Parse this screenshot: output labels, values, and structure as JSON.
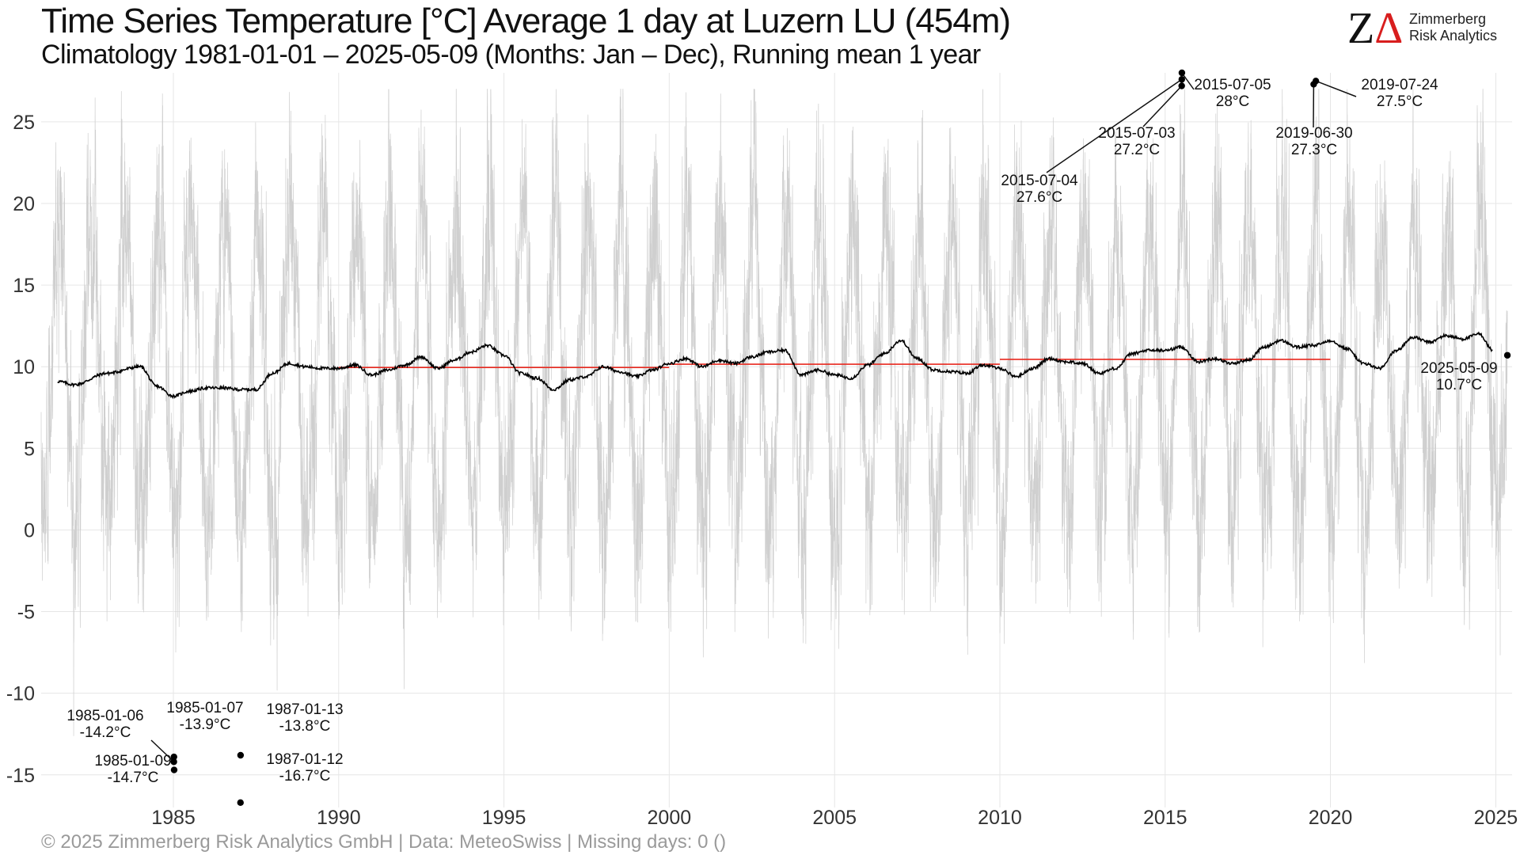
{
  "header": {
    "title": "Time Series Temperature [°C] Average 1 day at Luzern  LU (454m)",
    "subtitle": "Climatology 1981-01-01 – 2025-05-09 (Months: Jan – Dec), Running mean 1 year"
  },
  "logo": {
    "mark": "ZΔ",
    "line1": "Zimmerberg",
    "line2": "Risk Analytics"
  },
  "caption": "©  2025 Zimmerberg Risk Analytics GmbH | Data: MeteoSwiss | Missing days: 0 ()",
  "colors": {
    "daily_series": "#cfcfcf",
    "running_mean": "#000000",
    "decadal_mean": "#e8281e",
    "grid": "#e6e6e6",
    "logo_accent": "#d81e1e"
  },
  "chart_data": {
    "type": "line",
    "x_axis": {
      "type": "date",
      "range": [
        "1981-01-01",
        "2025-06-30"
      ],
      "ticks": [
        "1985",
        "1990",
        "1995",
        "2000",
        "2005",
        "2010",
        "2015",
        "2020",
        "2025"
      ]
    },
    "y_axis": {
      "range": [
        -17,
        28
      ],
      "ticks": [
        -15,
        -10,
        -5,
        0,
        5,
        10,
        15,
        20,
        25
      ]
    },
    "grid": true,
    "legend": "none",
    "series": [
      {
        "role": "daily",
        "seasonal_cycle": {
          "annual_mean": 9.8,
          "amplitude": 9.2,
          "warmest_day_of_year": 200,
          "noise_sd": 3.2
        }
      },
      {
        "role": "running_mean_1y",
        "x": [
          "1981-07",
          "1982-01",
          "1983-01",
          "1984-01",
          "1984-07",
          "1985-01",
          "1985-07",
          "1986-01",
          "1986-07",
          "1987-01",
          "1987-07",
          "1988-01",
          "1988-07",
          "1989-01",
          "1989-07",
          "1990-01",
          "1990-07",
          "1991-01",
          "1991-07",
          "1992-01",
          "1992-07",
          "1993-01",
          "1993-07",
          "1994-01",
          "1994-07",
          "1995-01",
          "1995-07",
          "1996-01",
          "1996-07",
          "1997-01",
          "1997-07",
          "1998-01",
          "1998-07",
          "1999-01",
          "1999-07",
          "2000-01",
          "2000-07",
          "2001-01",
          "2001-07",
          "2002-01",
          "2002-07",
          "2003-01",
          "2003-07",
          "2004-01",
          "2004-07",
          "2005-01",
          "2005-07",
          "2006-01",
          "2006-07",
          "2007-01",
          "2007-07",
          "2008-01",
          "2008-07",
          "2009-01",
          "2009-07",
          "2010-01",
          "2010-07",
          "2011-01",
          "2011-07",
          "2012-01",
          "2012-07",
          "2013-01",
          "2013-07",
          "2014-01",
          "2014-07",
          "2015-01",
          "2015-07",
          "2016-01",
          "2016-07",
          "2017-01",
          "2017-07",
          "2018-01",
          "2018-07",
          "2019-01",
          "2019-07",
          "2020-01",
          "2020-07",
          "2021-01",
          "2021-07",
          "2022-01",
          "2022-07",
          "2023-01",
          "2023-07",
          "2024-01",
          "2024-07",
          "2024-12"
        ],
        "y": [
          9.1,
          8.9,
          9.6,
          10.0,
          8.8,
          8.2,
          8.5,
          8.7,
          8.7,
          8.6,
          8.6,
          9.6,
          10.2,
          10.0,
          9.9,
          9.9,
          10.1,
          9.5,
          9.8,
          10.1,
          10.6,
          9.9,
          10.4,
          10.9,
          11.3,
          10.7,
          9.6,
          9.3,
          8.6,
          9.2,
          9.4,
          10.0,
          9.7,
          9.4,
          9.8,
          10.2,
          10.5,
          10.0,
          10.4,
          10.2,
          10.6,
          10.9,
          11.0,
          9.5,
          9.8,
          9.5,
          9.3,
          10.1,
          10.8,
          11.6,
          10.5,
          9.8,
          9.7,
          9.6,
          10.1,
          9.9,
          9.4,
          9.9,
          10.5,
          10.3,
          10.2,
          9.6,
          9.9,
          10.8,
          11.0,
          11.0,
          11.2,
          10.3,
          10.5,
          10.2,
          10.4,
          11.2,
          11.6,
          11.2,
          11.3,
          11.6,
          11.1,
          10.2,
          9.9,
          11.0,
          11.8,
          11.5,
          11.9,
          11.7,
          12.0,
          11.0
        ]
      },
      {
        "role": "decade_means",
        "segments": [
          {
            "x": [
              "1990-01-01",
              "1999-12-31"
            ],
            "y": 9.95
          },
          {
            "x": [
              "2000-01-01",
              "2009-12-31"
            ],
            "y": 10.15
          },
          {
            "x": [
              "2010-01-01",
              "2019-12-31"
            ],
            "y": 10.45
          }
        ]
      }
    ],
    "annotations": [
      {
        "date": "2015-07-05",
        "value": "28°C",
        "x": "2015-07-05",
        "y": 28.0
      },
      {
        "date": "2015-07-04",
        "value": "27.6°C",
        "x": "2015-07-04",
        "y": 27.6
      },
      {
        "date": "2015-07-03",
        "value": "27.2°C",
        "x": "2015-07-03",
        "y": 27.2
      },
      {
        "date": "2019-07-24",
        "value": "27.5°C",
        "x": "2019-07-24",
        "y": 27.5
      },
      {
        "date": "2019-06-30",
        "value": "27.3°C",
        "x": "2019-06-30",
        "y": 27.3
      },
      {
        "date": "2025-05-09",
        "value": "10.7°C",
        "x": "2025-05-09",
        "y": 10.7
      },
      {
        "date": "1985-01-06",
        "value": "-14.2°C",
        "x": "1985-01-06",
        "y": -14.2
      },
      {
        "date": "1985-01-07",
        "value": "-13.9°C",
        "x": "1985-01-07",
        "y": -13.9
      },
      {
        "date": "1985-01-09",
        "value": "-14.7°C",
        "x": "1985-01-09",
        "y": -14.7
      },
      {
        "date": "1987-01-13",
        "value": "-13.8°C",
        "x": "1987-01-13",
        "y": -13.8
      },
      {
        "date": "1987-01-12",
        "value": "-16.7°C",
        "x": "1987-01-12",
        "y": -16.7
      }
    ]
  }
}
